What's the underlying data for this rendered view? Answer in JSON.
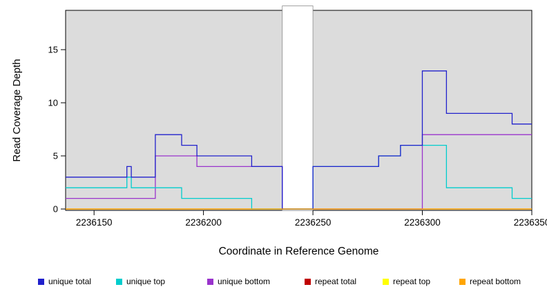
{
  "chart_data": {
    "type": "line",
    "step": true,
    "title": "",
    "xlabel": "Coordinate in Reference Genome",
    "ylabel": "Read Coverage Depth",
    "xlim": [
      2236137,
      2236350
    ],
    "ylim": [
      0,
      18.7
    ],
    "x_ticks": [
      2236150,
      2236200,
      2236250,
      2236300,
      2236350
    ],
    "y_ticks": [
      0,
      5,
      10,
      15
    ],
    "grid": false,
    "plot_background": "#dcdcdc",
    "gap_region": {
      "x_start": 2236236,
      "x_end": 2236250,
      "fill": "#ffffff",
      "border": "#8c8c8c"
    },
    "series": [
      {
        "name": "repeat total",
        "color": "#c00000",
        "steps": [
          [
            2236137,
            0
          ]
        ]
      },
      {
        "name": "repeat top",
        "color": "#ffff00",
        "steps": [
          [
            2236137,
            0
          ]
        ]
      },
      {
        "name": "unique bottom",
        "color": "#9933cc",
        "steps": [
          [
            2236137,
            1
          ],
          [
            2236178,
            5
          ],
          [
            2236197,
            4
          ],
          [
            2236236,
            0
          ],
          [
            2236300,
            7
          ]
        ]
      },
      {
        "name": "unique top",
        "color": "#00cdcd",
        "steps": [
          [
            2236137,
            2
          ],
          [
            2236165,
            3
          ],
          [
            2236167,
            2
          ],
          [
            2236190,
            1
          ],
          [
            2236222,
            0
          ],
          [
            2236250,
            4
          ],
          [
            2236280,
            5
          ],
          [
            2236290,
            6
          ],
          [
            2236311,
            2
          ],
          [
            2236341,
            1
          ]
        ]
      },
      {
        "name": "unique total",
        "color": "#2020cc",
        "steps": [
          [
            2236137,
            3
          ],
          [
            2236165,
            4
          ],
          [
            2236167,
            3
          ],
          [
            2236178,
            7
          ],
          [
            2236190,
            6
          ],
          [
            2236197,
            5
          ],
          [
            2236222,
            4
          ],
          [
            2236236,
            0
          ],
          [
            2236250,
            4
          ],
          [
            2236280,
            5
          ],
          [
            2236290,
            6
          ],
          [
            2236300,
            13
          ],
          [
            2236311,
            9
          ],
          [
            2236341,
            8
          ]
        ]
      },
      {
        "name": "repeat bottom",
        "color": "#ffa500",
        "steps": [
          [
            2236137,
            0
          ]
        ]
      }
    ],
    "legend": [
      {
        "label": "unique total",
        "color": "#2020cc"
      },
      {
        "label": "unique top",
        "color": "#00cdcd"
      },
      {
        "label": "unique bottom",
        "color": "#9933cc"
      },
      {
        "label": "repeat total",
        "color": "#c00000"
      },
      {
        "label": "repeat top",
        "color": "#ffff00"
      },
      {
        "label": "repeat bottom",
        "color": "#ffa500"
      }
    ],
    "legend_position": "bottom"
  }
}
